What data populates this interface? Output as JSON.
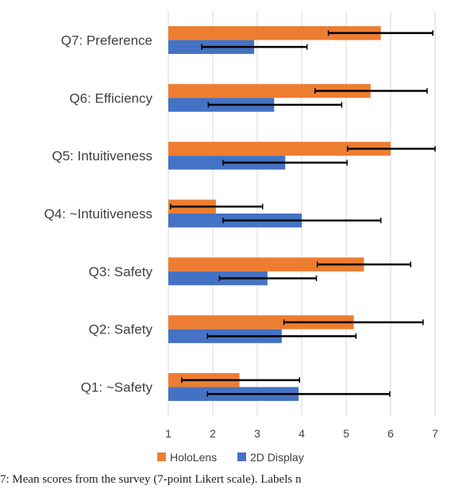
{
  "chart_data": {
    "type": "bar",
    "orientation": "horizontal",
    "categories": [
      "Q1: ~Safety",
      "Q2: Safety",
      "Q3: Safety",
      "Q4: ~Intuitiveness",
      "Q5: Intuitiveness",
      "Q6: Efficiency",
      "Q7: Preference"
    ],
    "series": [
      {
        "name": "HoloLens",
        "color": "#ED7D31",
        "values": [
          2.6,
          5.17,
          5.4,
          2.07,
          6.0,
          5.55,
          5.78
        ],
        "error_low": [
          1.3,
          3.6,
          4.35,
          1.05,
          5.03,
          4.3,
          4.6
        ],
        "error_high": [
          3.95,
          6.73,
          6.45,
          3.12,
          7.0,
          6.82,
          6.95
        ]
      },
      {
        "name": "2D Display",
        "color": "#4472C4",
        "values": [
          3.93,
          3.55,
          3.23,
          4.0,
          3.63,
          3.38,
          2.93
        ],
        "error_low": [
          1.88,
          1.88,
          2.15,
          2.23,
          2.23,
          1.9,
          1.75
        ],
        "error_high": [
          5.98,
          5.22,
          4.33,
          5.78,
          5.02,
          4.9,
          4.12
        ]
      }
    ],
    "xlim": [
      1,
      7
    ],
    "xticks": [
      "1",
      "2",
      "3",
      "4",
      "5",
      "6",
      "7"
    ],
    "grid": "vertical",
    "legend": "bottom",
    "title": "",
    "xlabel": "",
    "ylabel": ""
  },
  "caption": "7: Mean scores from the survey (7-point Likert scale). Labels n"
}
